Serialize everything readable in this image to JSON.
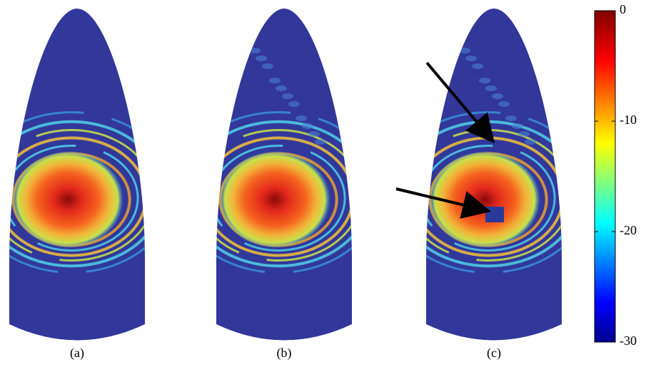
{
  "panels": [
    {
      "label": "(a)"
    },
    {
      "label": "(b)"
    },
    {
      "label": "(c)"
    }
  ],
  "colorbar": {
    "lim": [
      -30,
      0
    ],
    "ticks": [
      0,
      -10,
      -20,
      -30
    ]
  }
}
